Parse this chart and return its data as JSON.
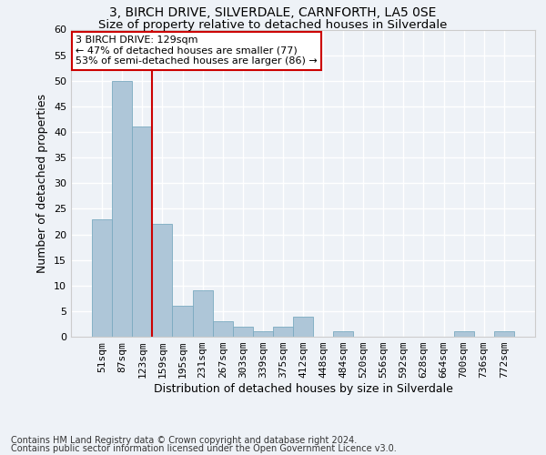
{
  "title1": "3, BIRCH DRIVE, SILVERDALE, CARNFORTH, LA5 0SE",
  "title2": "Size of property relative to detached houses in Silverdale",
  "xlabel": "Distribution of detached houses by size in Silverdale",
  "ylabel": "Number of detached properties",
  "categories": [
    "51sqm",
    "87sqm",
    "123sqm",
    "159sqm",
    "195sqm",
    "231sqm",
    "267sqm",
    "303sqm",
    "339sqm",
    "375sqm",
    "412sqm",
    "448sqm",
    "484sqm",
    "520sqm",
    "556sqm",
    "592sqm",
    "628sqm",
    "664sqm",
    "700sqm",
    "736sqm",
    "772sqm"
  ],
  "values": [
    23,
    50,
    41,
    22,
    6,
    9,
    3,
    2,
    1,
    2,
    4,
    0,
    1,
    0,
    0,
    0,
    0,
    0,
    1,
    0,
    1
  ],
  "bar_color": "#aec6d8",
  "bar_edge_color": "#7aaac0",
  "highlight_index": 2,
  "highlight_line_color": "#cc0000",
  "annotation_line1": "3 BIRCH DRIVE: 129sqm",
  "annotation_line2": "← 47% of detached houses are smaller (77)",
  "annotation_line3": "53% of semi-detached houses are larger (86) →",
  "annotation_box_facecolor": "#ffffff",
  "annotation_box_edgecolor": "#cc0000",
  "ylim": [
    0,
    60
  ],
  "yticks": [
    0,
    5,
    10,
    15,
    20,
    25,
    30,
    35,
    40,
    45,
    50,
    55,
    60
  ],
  "footer1": "Contains HM Land Registry data © Crown copyright and database right 2024.",
  "footer2": "Contains public sector information licensed under the Open Government Licence v3.0.",
  "bg_color": "#eef2f7",
  "grid_color": "#ffffff",
  "title1_fontsize": 10,
  "title2_fontsize": 9.5,
  "ylabel_fontsize": 9,
  "xlabel_fontsize": 9,
  "tick_fontsize": 8,
  "annotation_fontsize": 8,
  "footer_fontsize": 7
}
